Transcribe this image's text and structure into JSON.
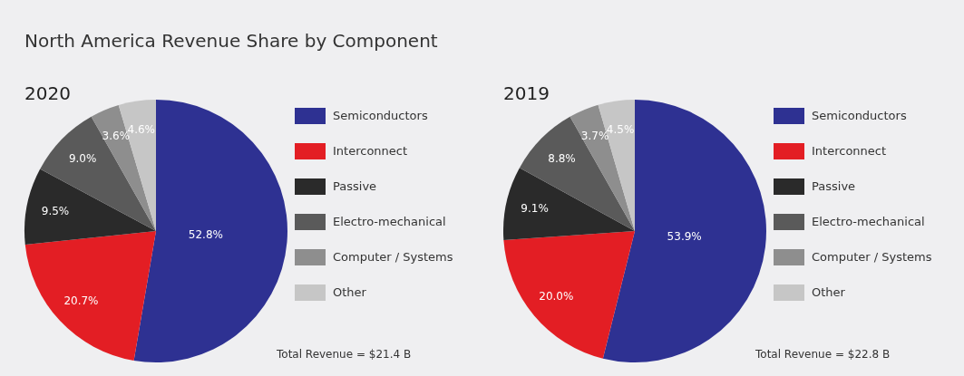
{
  "chart_data": [
    {
      "type": "pie",
      "title": "North America Revenue Share by Component",
      "subtitle": "2020",
      "categories": [
        "Semiconductors",
        "Interconnect",
        "Passive",
        "Electro-mechanical",
        "Computer / Systems",
        "Other"
      ],
      "values": [
        52.8,
        20.7,
        9.5,
        9.0,
        3.6,
        4.6
      ],
      "value_labels": [
        "52.8%",
        "20.7%",
        "9.5%",
        "9.0%",
        "3.6%",
        "4.6%"
      ],
      "colors": [
        "#2e3192",
        "#e31e24",
        "#2a2a2a",
        "#5a5a5a",
        "#8e8e8e",
        "#c6c6c6"
      ],
      "legend": "right",
      "annotations": [
        "Total Revenue = $21.4 B"
      ]
    },
    {
      "type": "pie",
      "subtitle": "2019",
      "categories": [
        "Semiconductors",
        "Interconnect",
        "Passive",
        "Electro-mechanical",
        "Computer / Systems",
        "Other"
      ],
      "values": [
        53.9,
        20.0,
        9.1,
        8.8,
        3.7,
        4.5
      ],
      "value_labels": [
        "53.9%",
        "20.0%",
        "9.1%",
        "8.8%",
        "3.7%",
        "4.5%"
      ],
      "colors": [
        "#2e3192",
        "#e31e24",
        "#2a2a2a",
        "#5a5a5a",
        "#8e8e8e",
        "#c6c6c6"
      ],
      "legend": "right",
      "annotations": [
        "Total Revenue = $22.8 B"
      ]
    }
  ]
}
